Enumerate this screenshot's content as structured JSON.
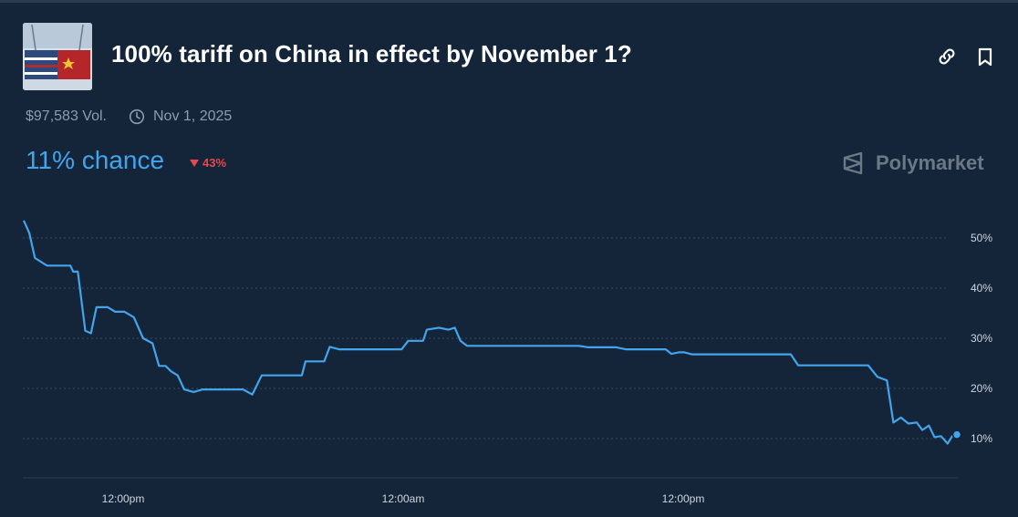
{
  "header": {
    "title": "100% tariff on China in effect by November 1?",
    "volume": "$97,583 Vol.",
    "end_date": "Nov 1, 2025",
    "chance": "11% chance",
    "change": "43%",
    "change_direction": "down",
    "brand": "Polymarket",
    "icons": [
      "link-icon",
      "bookmark-icon",
      "clock-icon",
      "polymarket-logo"
    ]
  },
  "colors": {
    "background": "#14253a",
    "line": "#42a5ec",
    "chance_text": "#42a5ec",
    "change_negative": "#e5484d"
  },
  "chart_data": {
    "type": "line",
    "x_ticks": [
      "12:00pm",
      "12:00am",
      "12:00pm"
    ],
    "y_ticks": [
      "50%",
      "40%",
      "30%",
      "20%",
      "10%"
    ],
    "ylim": [
      5,
      55
    ],
    "grid": true,
    "series": [
      {
        "points": [
          [
            0,
            53.5
          ],
          [
            0.006,
            51
          ],
          [
            0.012,
            46
          ],
          [
            0.025,
            44.5
          ],
          [
            0.05,
            44.5
          ],
          [
            0.053,
            43.3
          ],
          [
            0.058,
            43.3
          ],
          [
            0.066,
            31.5
          ],
          [
            0.072,
            31
          ],
          [
            0.078,
            36.2
          ],
          [
            0.09,
            36.2
          ],
          [
            0.098,
            35.3
          ],
          [
            0.108,
            35.3
          ],
          [
            0.118,
            34.2
          ],
          [
            0.128,
            30
          ],
          [
            0.138,
            29
          ],
          [
            0.145,
            24.5
          ],
          [
            0.152,
            24.5
          ],
          [
            0.158,
            23.4
          ],
          [
            0.165,
            22.6
          ],
          [
            0.172,
            19.8
          ],
          [
            0.182,
            19.3
          ],
          [
            0.192,
            19.8
          ],
          [
            0.235,
            19.8
          ],
          [
            0.245,
            18.8
          ],
          [
            0.255,
            22.6
          ],
          [
            0.298,
            22.6
          ],
          [
            0.302,
            25.4
          ],
          [
            0.322,
            25.4
          ],
          [
            0.328,
            28.3
          ],
          [
            0.338,
            27.8
          ],
          [
            0.405,
            27.8
          ],
          [
            0.412,
            29.5
          ],
          [
            0.428,
            29.5
          ],
          [
            0.432,
            31.7
          ],
          [
            0.445,
            32.1
          ],
          [
            0.455,
            31.7
          ],
          [
            0.462,
            32.1
          ],
          [
            0.468,
            29.5
          ],
          [
            0.475,
            28.5
          ],
          [
            0.595,
            28.5
          ],
          [
            0.605,
            28.2
          ],
          [
            0.635,
            28.2
          ],
          [
            0.645,
            27.8
          ],
          [
            0.688,
            27.8
          ],
          [
            0.694,
            26.9
          ],
          [
            0.702,
            27.2
          ],
          [
            0.708,
            27.2
          ],
          [
            0.716,
            26.8
          ],
          [
            0.822,
            26.8
          ],
          [
            0.83,
            24.6
          ],
          [
            0.905,
            24.6
          ],
          [
            0.915,
            22.3
          ],
          [
            0.925,
            21.6
          ],
          [
            0.932,
            13.2
          ],
          [
            0.94,
            14.2
          ],
          [
            0.948,
            13
          ],
          [
            0.957,
            13.2
          ],
          [
            0.963,
            11.7
          ],
          [
            0.97,
            12.6
          ],
          [
            0.976,
            10.3
          ],
          [
            0.983,
            10.5
          ],
          [
            0.99,
            9
          ],
          [
            0.995,
            10.5
          ],
          [
            1.0,
            10.8
          ]
        ]
      }
    ]
  }
}
